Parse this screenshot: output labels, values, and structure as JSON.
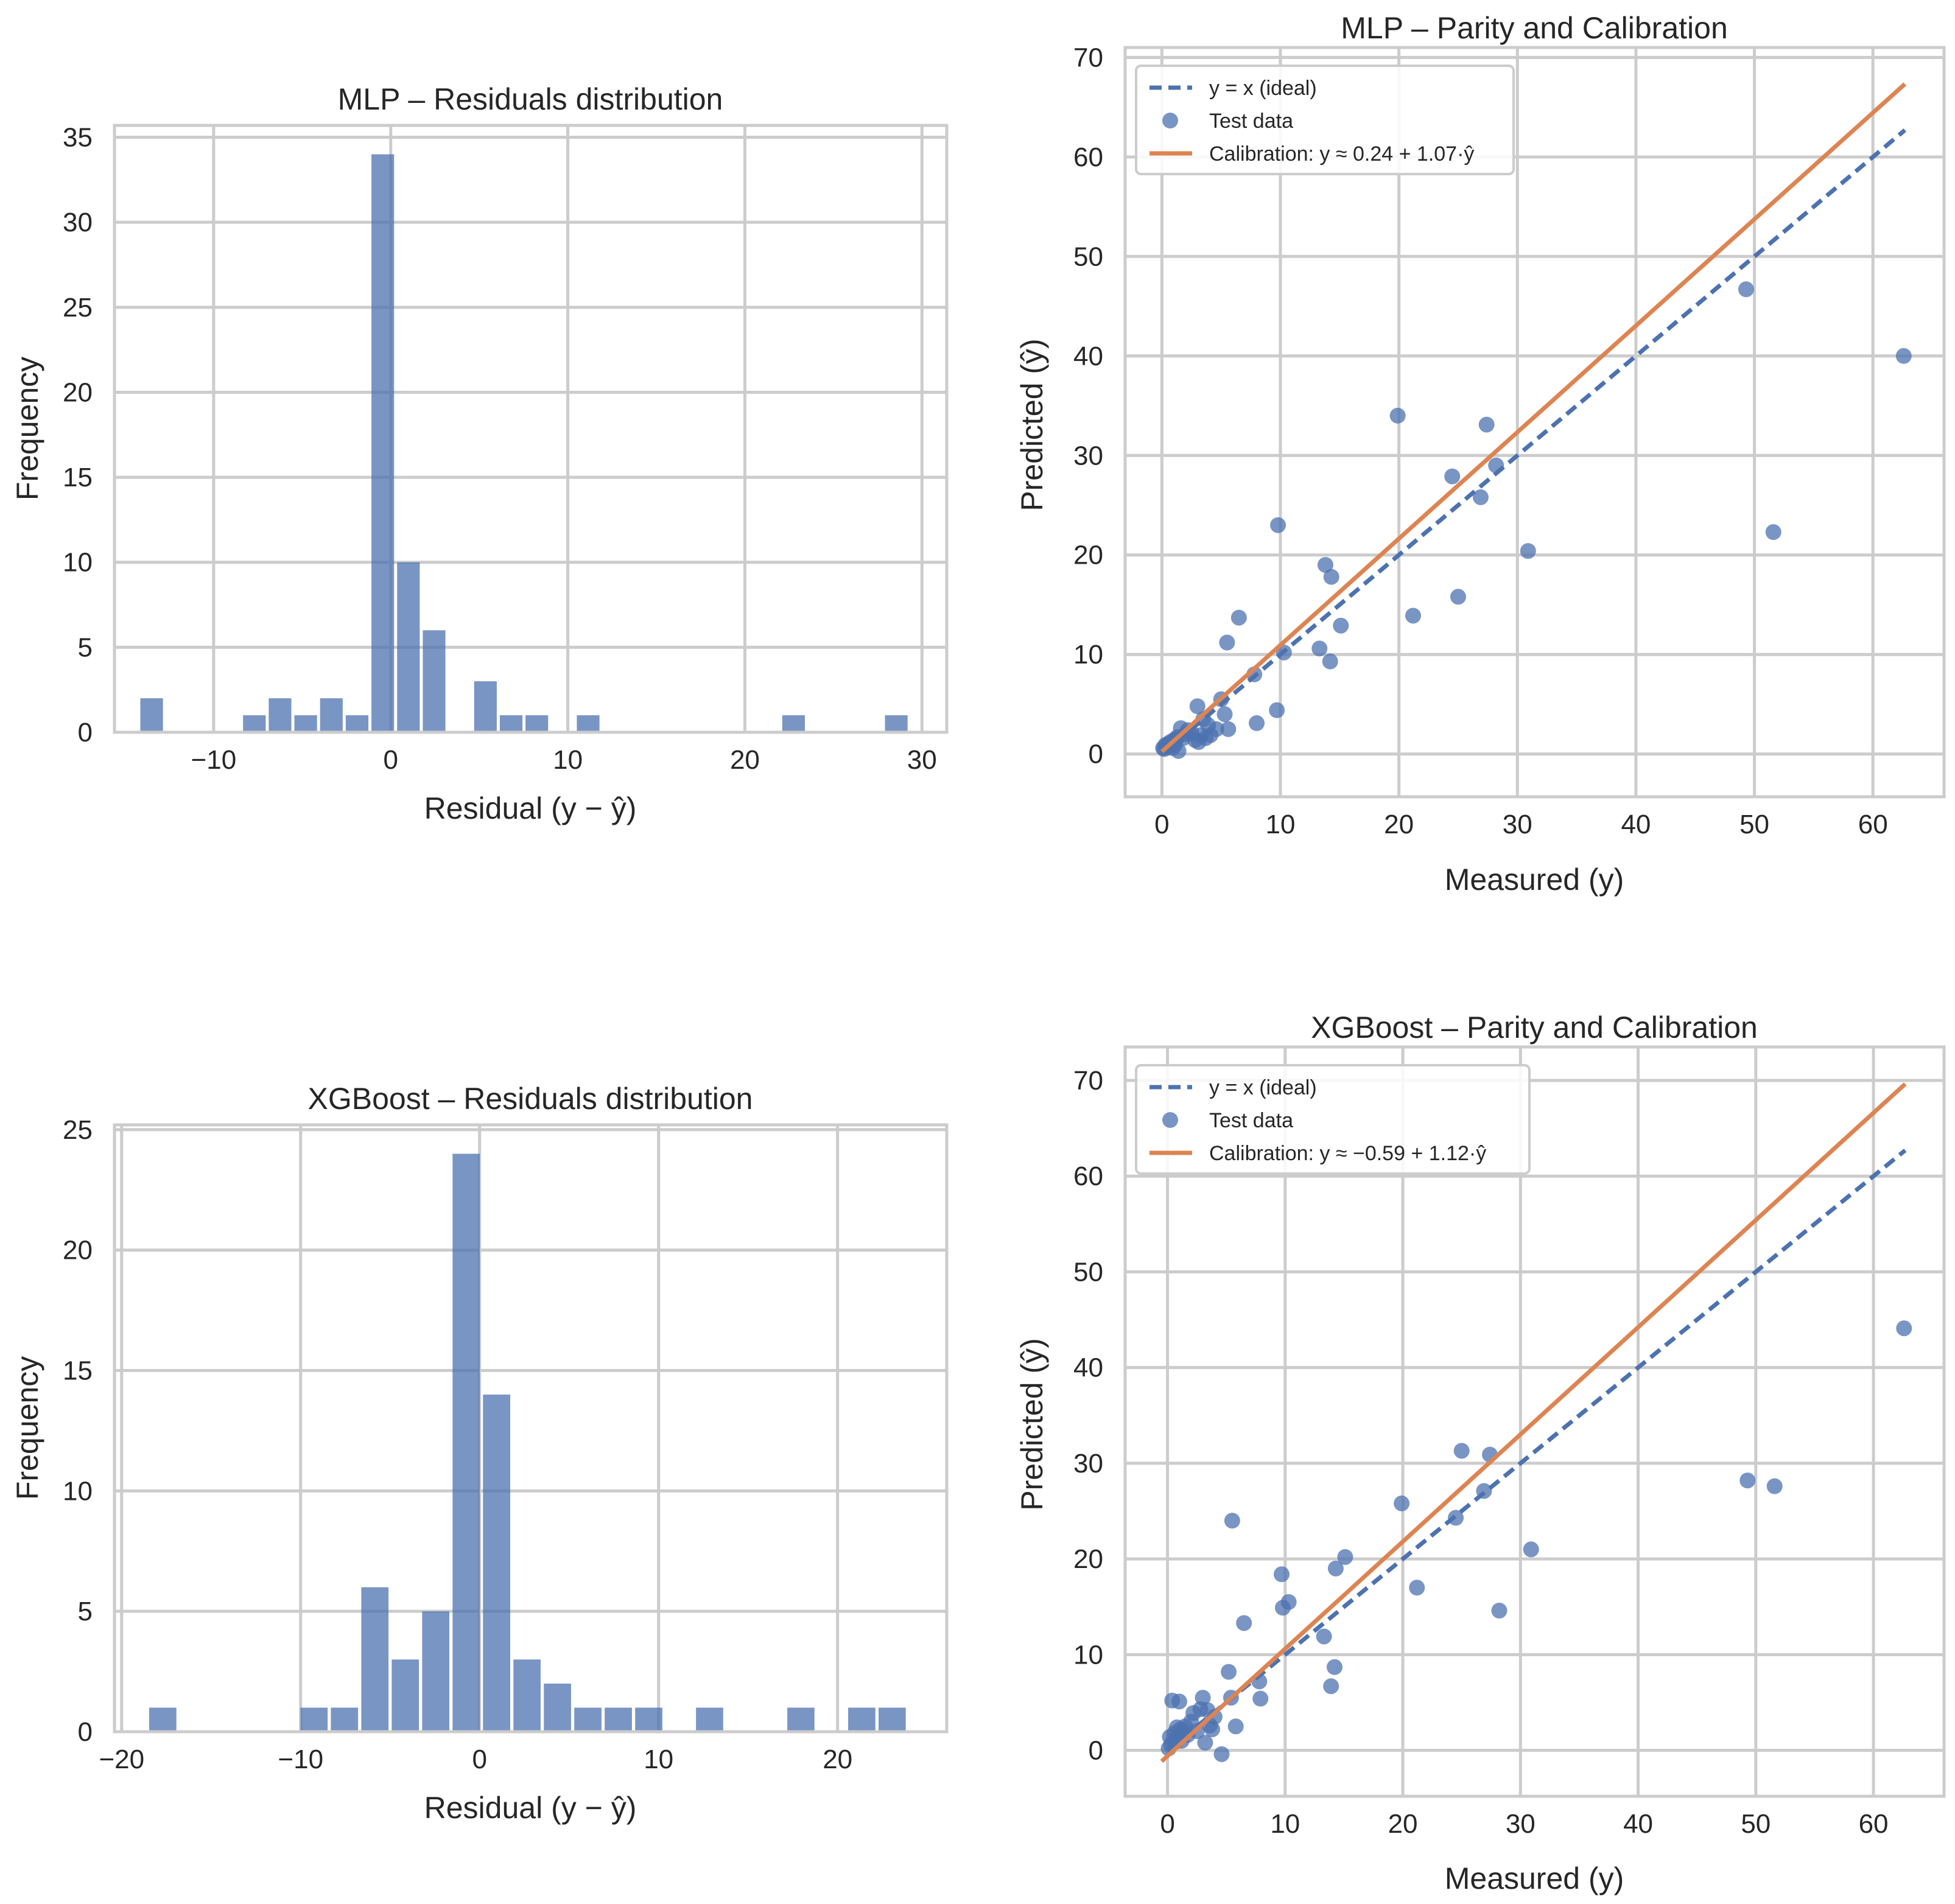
{
  "colors": {
    "blue": "#4c72b0",
    "orange": "#dd8452",
    "grid": "#cccccc",
    "text": "#262626"
  },
  "chart_data": [
    {
      "id": "mlp_hist",
      "type": "bar",
      "title": "MLP – Residuals distribution",
      "xlabel": "Residual (y − ŷ)",
      "ylabel": "Frequency",
      "xlim": [
        -15.6,
        31.4
      ],
      "ylim": [
        0,
        35.7
      ],
      "xticks": [
        -10,
        0,
        10,
        20,
        30
      ],
      "xtick_labels": [
        "−10",
        "0",
        "10",
        "20",
        "30"
      ],
      "yticks": [
        0,
        5,
        10,
        15,
        20,
        25,
        30,
        35
      ],
      "ytick_labels": [
        "0",
        "5",
        "10",
        "15",
        "20",
        "25",
        "30",
        "35"
      ],
      "bin_width": 1.45,
      "bins": [
        {
          "x": -13.5,
          "count": 2
        },
        {
          "x": -7.7,
          "count": 1
        },
        {
          "x": -6.25,
          "count": 2
        },
        {
          "x": -4.8,
          "count": 1
        },
        {
          "x": -3.35,
          "count": 2
        },
        {
          "x": -1.9,
          "count": 1
        },
        {
          "x": -0.45,
          "count": 34
        },
        {
          "x": 1.0,
          "count": 10
        },
        {
          "x": 2.45,
          "count": 6
        },
        {
          "x": 5.35,
          "count": 3
        },
        {
          "x": 6.8,
          "count": 1
        },
        {
          "x": 8.25,
          "count": 1
        },
        {
          "x": 11.15,
          "count": 1
        },
        {
          "x": 22.75,
          "count": 1
        },
        {
          "x": 28.55,
          "count": 1
        }
      ]
    },
    {
      "id": "mlp_parity",
      "type": "scatter",
      "title": "MLP – Parity and Calibration",
      "xlabel": "Measured (y)",
      "ylabel": "Predicted (ŷ)",
      "xlim": [
        -3.1,
        66.0
      ],
      "ylim": [
        -4.3,
        71.0
      ],
      "xticks": [
        0,
        10,
        20,
        30,
        40,
        50,
        60
      ],
      "xtick_labels": [
        "0",
        "10",
        "20",
        "30",
        "40",
        "50",
        "60"
      ],
      "yticks": [
        0,
        10,
        20,
        30,
        40,
        50,
        60,
        70
      ],
      "ytick_labels": [
        "0",
        "10",
        "20",
        "30",
        "40",
        "50",
        "60",
        "70"
      ],
      "legend": {
        "position": "upper-left",
        "ideal_label": "y = x (ideal)",
        "points_label": "Test data",
        "calibration_label": "Calibration: y ≈ 0.24 + 1.07·ŷ"
      },
      "ideal_range": [
        0,
        62.7
      ],
      "calibration": {
        "intercept": 0.24,
        "slope": 1.07,
        "range": [
          0,
          62.7
        ]
      },
      "points": [
        [
          0.1,
          0.6
        ],
        [
          0.2,
          0.5
        ],
        [
          0.3,
          0.9
        ],
        [
          0.4,
          0.7
        ],
        [
          0.5,
          1.0
        ],
        [
          0.6,
          0.8
        ],
        [
          0.7,
          1.2
        ],
        [
          0.8,
          1.1
        ],
        [
          0.9,
          0.6
        ],
        [
          1.0,
          1.4
        ],
        [
          1.1,
          0.9
        ],
        [
          1.2,
          1.5
        ],
        [
          1.3,
          1.7
        ],
        [
          1.4,
          0.3
        ],
        [
          1.6,
          2.6
        ],
        [
          1.8,
          1.6
        ],
        [
          2.0,
          2.0
        ],
        [
          2.2,
          2.4
        ],
        [
          2.5,
          2.1
        ],
        [
          2.8,
          1.4
        ],
        [
          3.0,
          4.8
        ],
        [
          3.1,
          1.2
        ],
        [
          3.3,
          1.9
        ],
        [
          3.5,
          3.5
        ],
        [
          3.7,
          1.6
        ],
        [
          3.9,
          2.9
        ],
        [
          4.1,
          1.9
        ],
        [
          4.6,
          2.5
        ],
        [
          5.0,
          5.5
        ],
        [
          5.3,
          4.0
        ],
        [
          5.5,
          11.2
        ],
        [
          5.6,
          2.5
        ],
        [
          6.5,
          13.7
        ],
        [
          7.8,
          8.0
        ],
        [
          8.0,
          3.1
        ],
        [
          9.7,
          4.4
        ],
        [
          9.8,
          23.0
        ],
        [
          10.3,
          10.2
        ],
        [
          13.3,
          10.6
        ],
        [
          13.8,
          19.0
        ],
        [
          14.2,
          9.3
        ],
        [
          14.3,
          17.8
        ],
        [
          15.1,
          12.9
        ],
        [
          19.9,
          34.0
        ],
        [
          21.2,
          13.9
        ],
        [
          24.5,
          27.9
        ],
        [
          25.0,
          15.8
        ],
        [
          26.9,
          25.8
        ],
        [
          27.4,
          33.1
        ],
        [
          28.2,
          29.0
        ],
        [
          30.9,
          20.4
        ],
        [
          49.3,
          46.7
        ],
        [
          51.6,
          22.3
        ],
        [
          62.6,
          40.0
        ]
      ]
    },
    {
      "id": "xgb_hist",
      "type": "bar",
      "title": "XGBoost – Residuals distribution",
      "xlabel": "Residual (y − ŷ)",
      "ylabel": "Frequency",
      "xlim": [
        -20.4,
        26.1
      ],
      "ylim": [
        0,
        25.2
      ],
      "xticks": [
        -20,
        -10,
        0,
        10,
        20
      ],
      "xtick_labels": [
        "−20",
        "−10",
        "0",
        "10",
        "20"
      ],
      "yticks": [
        0,
        5,
        10,
        15,
        20,
        25
      ],
      "ytick_labels": [
        "0",
        "5",
        "10",
        "15",
        "20",
        "25"
      ],
      "bin_width": 1.69,
      "bins": [
        {
          "x": -17.7,
          "count": 1
        },
        {
          "x": -9.25,
          "count": 1
        },
        {
          "x": -7.55,
          "count": 1
        },
        {
          "x": -5.85,
          "count": 6
        },
        {
          "x": -4.15,
          "count": 3
        },
        {
          "x": -2.45,
          "count": 5
        },
        {
          "x": -0.75,
          "count": 24
        },
        {
          "x": 0.95,
          "count": 14
        },
        {
          "x": 2.65,
          "count": 3
        },
        {
          "x": 4.35,
          "count": 2
        },
        {
          "x": 6.05,
          "count": 1
        },
        {
          "x": 7.75,
          "count": 1
        },
        {
          "x": 9.45,
          "count": 1
        },
        {
          "x": 12.85,
          "count": 1
        },
        {
          "x": 17.95,
          "count": 1
        },
        {
          "x": 21.35,
          "count": 1
        },
        {
          "x": 23.05,
          "count": 1
        }
      ]
    },
    {
      "id": "xgb_parity",
      "type": "scatter",
      "title": "XGBoost – Parity and Calibration",
      "xlabel": "Measured (y)",
      "ylabel": "Predicted (ŷ)",
      "xlim": [
        -3.6,
        66.0
      ],
      "ylim": [
        -4.8,
        73.5
      ],
      "xticks": [
        0,
        10,
        20,
        30,
        40,
        50,
        60
      ],
      "xtick_labels": [
        "0",
        "10",
        "20",
        "30",
        "40",
        "50",
        "60"
      ],
      "yticks": [
        0,
        10,
        20,
        30,
        40,
        50,
        60,
        70
      ],
      "ytick_labels": [
        "0",
        "10",
        "20",
        "30",
        "40",
        "50",
        "60",
        "70"
      ],
      "legend": {
        "position": "upper-left",
        "ideal_label": "y = x (ideal)",
        "points_label": "Test data",
        "calibration_label": "Calibration: y ≈ −0.59 + 1.12·ŷ"
      },
      "ideal_range": [
        0,
        62.7
      ],
      "calibration": {
        "intercept": -0.59,
        "slope": 1.12,
        "range": [
          -0.5,
          62.7
        ]
      },
      "points": [
        [
          0.1,
          0.2
        ],
        [
          0.2,
          1.4
        ],
        [
          0.3,
          0.6
        ],
        [
          0.4,
          5.2
        ],
        [
          0.5,
          1.0
        ],
        [
          0.6,
          1.8
        ],
        [
          0.7,
          0.9
        ],
        [
          0.8,
          2.4
        ],
        [
          0.9,
          1.4
        ],
        [
          1.0,
          5.1
        ],
        [
          1.1,
          2.2
        ],
        [
          1.2,
          1.0
        ],
        [
          1.3,
          2.0
        ],
        [
          1.5,
          2.5
        ],
        [
          1.7,
          1.6
        ],
        [
          2.0,
          3.0
        ],
        [
          2.2,
          3.9
        ],
        [
          2.5,
          2.0
        ],
        [
          2.8,
          4.3
        ],
        [
          3.0,
          5.5
        ],
        [
          3.2,
          0.8
        ],
        [
          3.4,
          4.2
        ],
        [
          3.6,
          2.6
        ],
        [
          3.8,
          2.2
        ],
        [
          4.0,
          3.5
        ],
        [
          4.6,
          -0.4
        ],
        [
          5.2,
          8.2
        ],
        [
          5.4,
          5.5
        ],
        [
          5.5,
          24.0
        ],
        [
          5.8,
          2.5
        ],
        [
          6.5,
          13.3
        ],
        [
          7.8,
          7.2
        ],
        [
          7.9,
          5.4
        ],
        [
          9.7,
          18.4
        ],
        [
          9.8,
          14.9
        ],
        [
          10.3,
          15.5
        ],
        [
          13.3,
          11.9
        ],
        [
          13.9,
          6.7
        ],
        [
          14.2,
          8.7
        ],
        [
          14.3,
          19.0
        ],
        [
          15.1,
          20.2
        ],
        [
          19.9,
          25.8
        ],
        [
          21.2,
          17.0
        ],
        [
          24.5,
          24.3
        ],
        [
          25.0,
          31.3
        ],
        [
          26.9,
          27.1
        ],
        [
          27.4,
          30.9
        ],
        [
          28.2,
          14.6
        ],
        [
          30.9,
          21.0
        ],
        [
          49.3,
          28.2
        ],
        [
          51.6,
          27.6
        ],
        [
          62.6,
          44.1
        ]
      ]
    }
  ]
}
